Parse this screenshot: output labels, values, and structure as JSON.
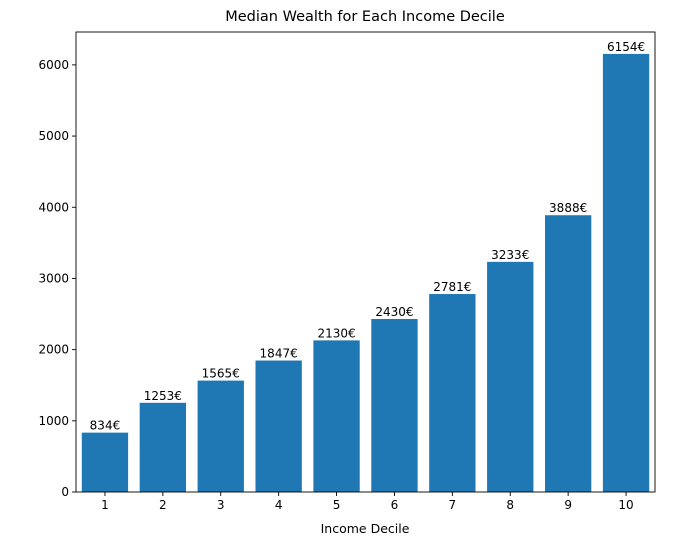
{
  "chart_data": {
    "type": "bar",
    "title": "Median Wealth for Each Income Decile",
    "xlabel": "Income Decile",
    "ylabel": "",
    "categories": [
      "1",
      "2",
      "3",
      "4",
      "5",
      "6",
      "7",
      "8",
      "9",
      "10"
    ],
    "values": [
      834,
      1253,
      1565,
      1847,
      2130,
      2430,
      2781,
      3233,
      3888,
      6154
    ],
    "data_labels": [
      "834€",
      "1253€",
      "1565€",
      "1847€",
      "2130€",
      "2430€",
      "2781€",
      "3233€",
      "3888€",
      "6154€"
    ],
    "ylim": [
      0,
      6462
    ],
    "yticks": [
      0,
      1000,
      2000,
      3000,
      4000,
      5000,
      6000
    ],
    "grid": false,
    "legend": "none",
    "colors": {
      "bar": "#1f77b4",
      "axis": "#000000",
      "text": "#000000"
    }
  }
}
